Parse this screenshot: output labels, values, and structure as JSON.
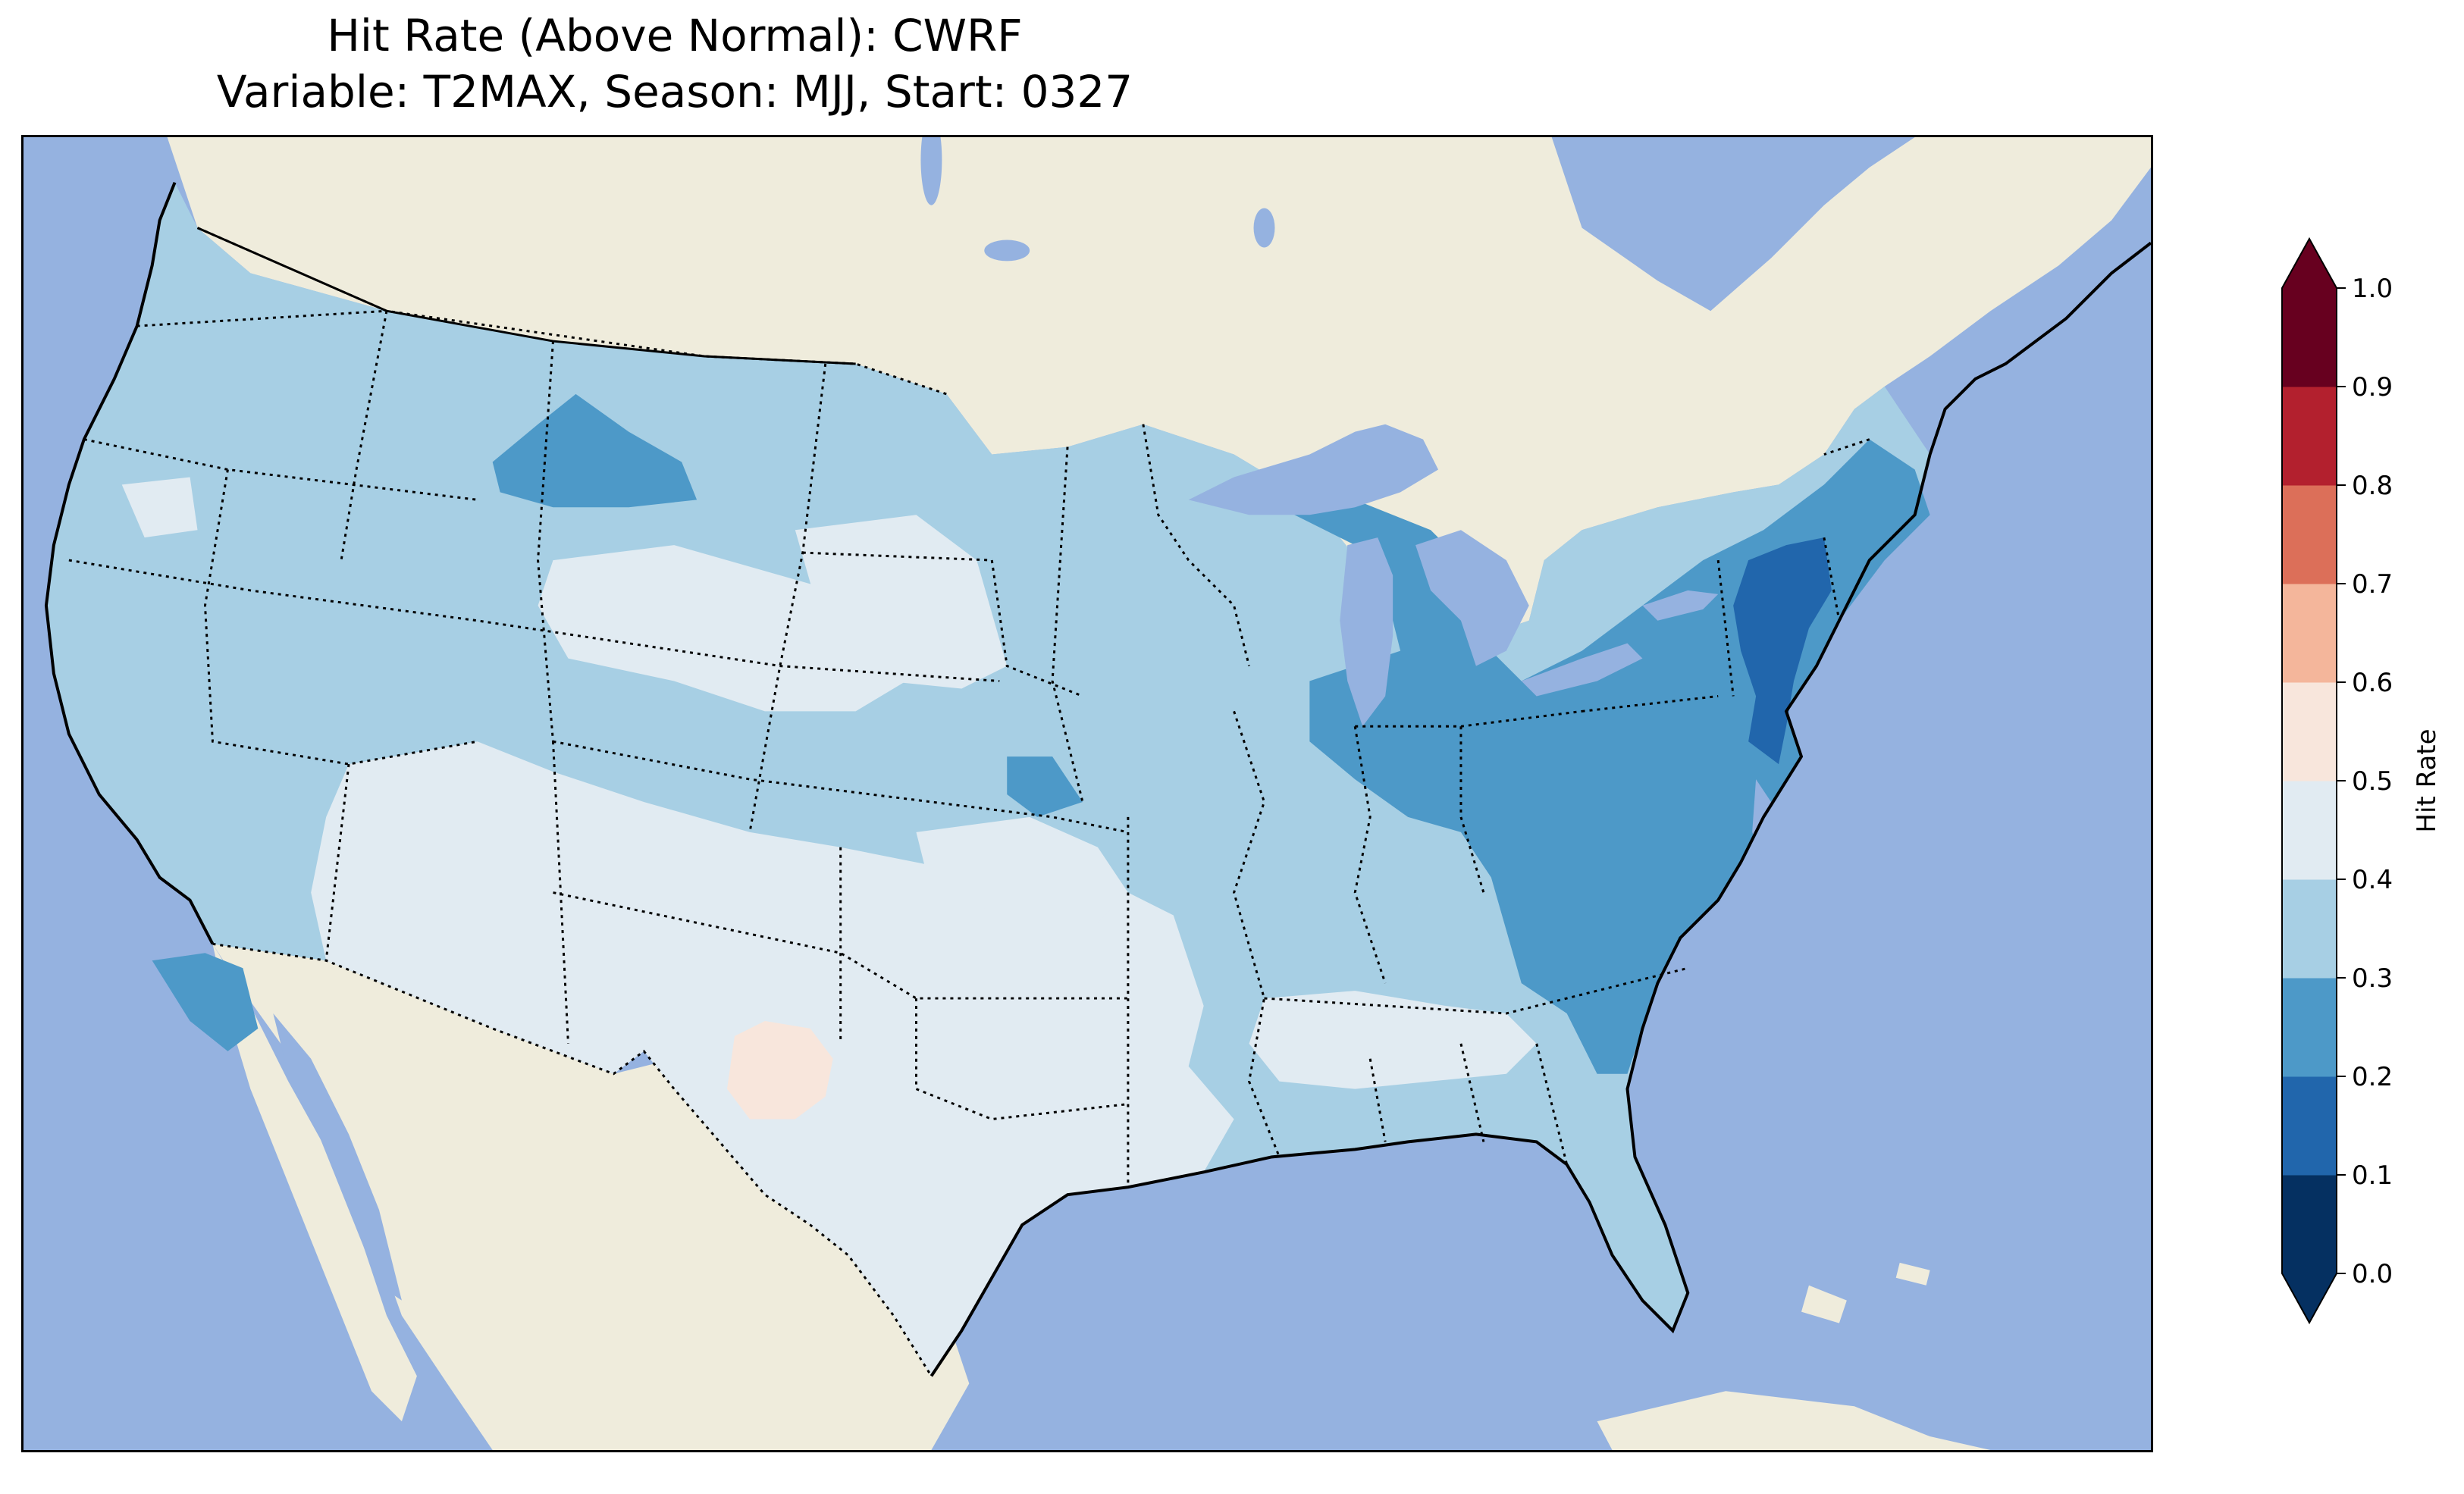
{
  "title_line1": "Hit Rate (Above Normal): CWRF",
  "title_line2": "Variable: T2MAX, Season: MJJ, Start: 0327",
  "colors": {
    "ocean": "#95b2e0",
    "land": "#efecdc",
    "frame": "#000000"
  },
  "colorbar": {
    "label": "Hit Rate",
    "ticks": [
      "0.0",
      "0.1",
      "0.2",
      "0.3",
      "0.4",
      "0.5",
      "0.6",
      "0.7",
      "0.8",
      "0.9",
      "1.0"
    ],
    "bins": [
      {
        "range": [
          0.0,
          0.1
        ],
        "color": "#053061"
      },
      {
        "range": [
          0.1,
          0.2
        ],
        "color": "#2166ac"
      },
      {
        "range": [
          0.2,
          0.3
        ],
        "color": "#4d99c8"
      },
      {
        "range": [
          0.3,
          0.4
        ],
        "color": "#a7cfe4"
      },
      {
        "range": [
          0.4,
          0.5
        ],
        "color": "#e1ebf2"
      },
      {
        "range": [
          0.5,
          0.6
        ],
        "color": "#f8e6dc"
      },
      {
        "range": [
          0.6,
          0.7
        ],
        "color": "#f4b69b"
      },
      {
        "range": [
          0.7,
          0.8
        ],
        "color": "#dc6f59"
      },
      {
        "range": [
          0.8,
          0.9
        ],
        "color": "#b3202e"
      },
      {
        "range": [
          0.9,
          1.0
        ],
        "color": "#67001f"
      }
    ],
    "extend": "both"
  },
  "map": {
    "projection": "Lambert Conformal",
    "region": "Contiguous United States",
    "overlays": [
      "coastlines",
      "state-borders",
      "country-borders",
      "lakes"
    ],
    "regions": [
      {
        "name": "Pacific Northwest",
        "hit_rate_bin": "0.3–0.4"
      },
      {
        "name": "Montana north-central",
        "hit_rate_bin": "0.2–0.3"
      },
      {
        "name": "Great Plains",
        "hit_rate_bin": "0.3–0.4"
      },
      {
        "name": "Southwest",
        "hit_rate_bin": "0.4–0.5"
      },
      {
        "name": "Texas",
        "hit_rate_bin": "0.4–0.5"
      },
      {
        "name": "Eastern New Mexico",
        "hit_rate_bin": "0.5–0.6"
      },
      {
        "name": "Great Lakes",
        "hit_rate_bin": "0.2–0.3"
      },
      {
        "name": "Mid-Atlantic / Ohio Valley",
        "hit_rate_bin": "0.2–0.3"
      },
      {
        "name": "New Jersey / New York",
        "hit_rate_bin": "0.1–0.2"
      },
      {
        "name": "Southeast",
        "hit_rate_bin": "0.3–0.4"
      },
      {
        "name": "Southern California coast",
        "hit_rate_bin": "0.2–0.3"
      }
    ]
  }
}
